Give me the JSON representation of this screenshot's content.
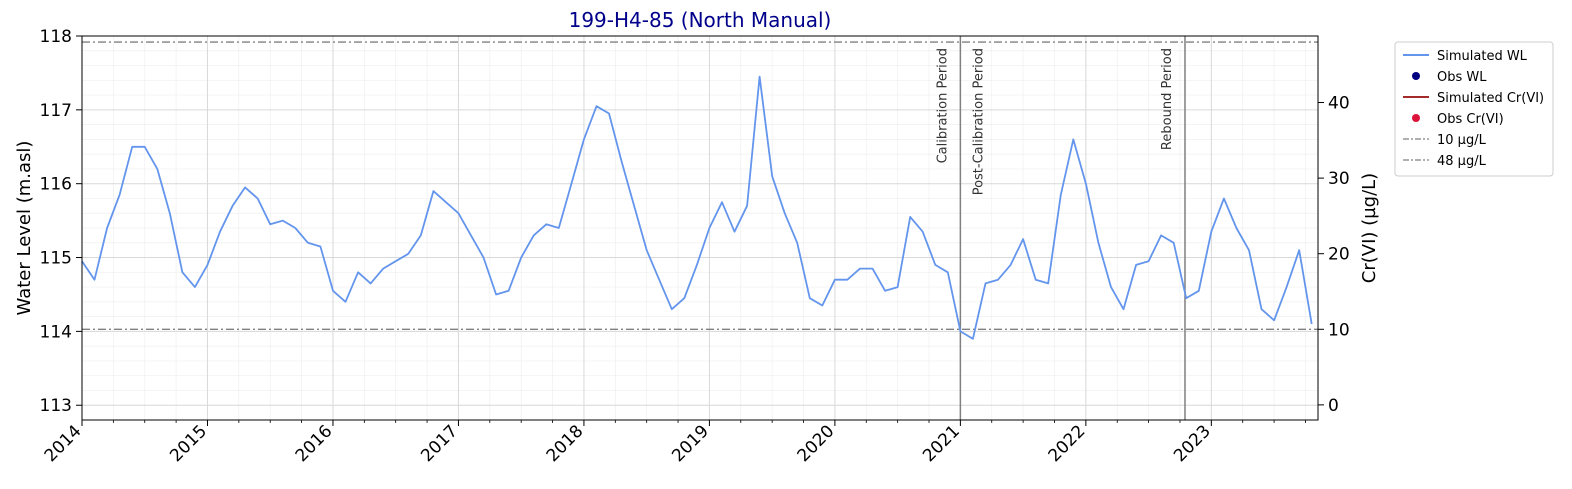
{
  "chart_data": {
    "type": "line",
    "title": "199-H4-85 (North Manual)",
    "title_color": "#00008b",
    "ylabel": "Water Level (m.asl)",
    "y2label": "Cr(VI) (µg/L)",
    "xlim": [
      2014.0,
      2023.85
    ],
    "ylim": [
      112.8,
      118.0
    ],
    "y2lim": [
      -2.0,
      48.8
    ],
    "x_ticks": [
      2014,
      2015,
      2016,
      2017,
      2018,
      2019,
      2020,
      2021,
      2022,
      2023
    ],
    "y_ticks": [
      113,
      114,
      115,
      116,
      117,
      118
    ],
    "y2_ticks": [
      0,
      10,
      20,
      30,
      40
    ],
    "grid": true,
    "legend_position": "outside-top-right",
    "thresholds": [
      {
        "label": "10 µg/L",
        "value": 10,
        "color": "#808080"
      },
      {
        "label": "48 µg/L",
        "value": 48,
        "color": "#808080"
      }
    ],
    "periods": [
      {
        "x": 2021.0,
        "label": "Calibration Period",
        "side": "left"
      },
      {
        "x": 2021.0,
        "label": "Post-Calibration Period",
        "side": "right"
      },
      {
        "x": 2022.79,
        "label": "Rebound Period",
        "side": "left"
      }
    ],
    "series": [
      {
        "name": "Simulated WL",
        "kind": "line",
        "axis": "left",
        "color": "#6495ed",
        "x": [
          2014.0,
          2014.1,
          2014.2,
          2014.3,
          2014.4,
          2014.5,
          2014.6,
          2014.7,
          2014.8,
          2014.9,
          2015.0,
          2015.1,
          2015.2,
          2015.3,
          2015.4,
          2015.5,
          2015.6,
          2015.7,
          2015.8,
          2015.9,
          2016.0,
          2016.1,
          2016.2,
          2016.3,
          2016.4,
          2016.5,
          2016.6,
          2016.7,
          2016.8,
          2016.9,
          2017.0,
          2017.1,
          2017.2,
          2017.3,
          2017.4,
          2017.5,
          2017.6,
          2017.7,
          2017.8,
          2017.9,
          2018.0,
          2018.1,
          2018.2,
          2018.3,
          2018.4,
          2018.5,
          2018.6,
          2018.7,
          2018.8,
          2018.9,
          2019.0,
          2019.1,
          2019.2,
          2019.3,
          2019.4,
          2019.5,
          2019.6,
          2019.7,
          2019.8,
          2019.9,
          2020.0,
          2020.1,
          2020.2,
          2020.3,
          2020.4,
          2020.5,
          2020.6,
          2020.7,
          2020.8,
          2020.9,
          2021.0,
          2021.1,
          2021.2,
          2021.3,
          2021.4,
          2021.5,
          2021.6,
          2021.7,
          2021.8,
          2021.9,
          2022.0,
          2022.1,
          2022.2,
          2022.3,
          2022.4,
          2022.5,
          2022.6,
          2022.7,
          2022.8,
          2022.9,
          2023.0,
          2023.1,
          2023.2,
          2023.3,
          2023.4,
          2023.5,
          2023.6,
          2023.7,
          2023.8
        ],
        "y": [
          114.95,
          114.7,
          115.4,
          115.85,
          116.5,
          116.5,
          116.2,
          115.6,
          114.8,
          114.6,
          114.9,
          115.35,
          115.7,
          115.95,
          115.8,
          115.45,
          115.5,
          115.4,
          115.2,
          115.15,
          114.55,
          114.4,
          114.8,
          114.65,
          114.85,
          114.95,
          115.05,
          115.3,
          115.9,
          115.75,
          115.6,
          115.3,
          115.0,
          114.5,
          114.55,
          115.0,
          115.3,
          115.45,
          115.4,
          116.0,
          116.6,
          117.05,
          116.95,
          116.3,
          115.7,
          115.1,
          114.7,
          114.3,
          114.45,
          114.9,
          115.4,
          115.75,
          115.35,
          115.7,
          117.45,
          116.1,
          115.6,
          115.2,
          114.45,
          114.35,
          114.7,
          114.7,
          114.85,
          114.85,
          114.55,
          114.6,
          115.55,
          115.35,
          114.9,
          114.8,
          114.0,
          113.9,
          114.65,
          114.7,
          114.9,
          115.25,
          114.7,
          114.65,
          115.85,
          116.6,
          116.0,
          115.2,
          114.6,
          114.3,
          114.9,
          114.95,
          115.3,
          115.2,
          114.45,
          114.55,
          115.35,
          115.8,
          115.4,
          115.1,
          114.3,
          114.15,
          114.6,
          115.1,
          114.1
        ],
        "note_axis": "Simulated WL follows the water level axis"
      }
    ]
  },
  "legend": {
    "items": [
      {
        "label": "Simulated WL",
        "marker": "line",
        "color": "#6495ed"
      },
      {
        "label": "Obs WL",
        "marker": "dot",
        "color": "#000080"
      },
      {
        "label": "Simulated Cr(VI)",
        "marker": "line",
        "color": "#a52a2a"
      },
      {
        "label": "Obs Cr(VI)",
        "marker": "dot",
        "color": "#dc143c"
      },
      {
        "label": "10 µg/L",
        "marker": "dashdot",
        "color": "#808080"
      },
      {
        "label": "48 µg/L",
        "marker": "dashdot",
        "color": "#808080"
      }
    ]
  }
}
